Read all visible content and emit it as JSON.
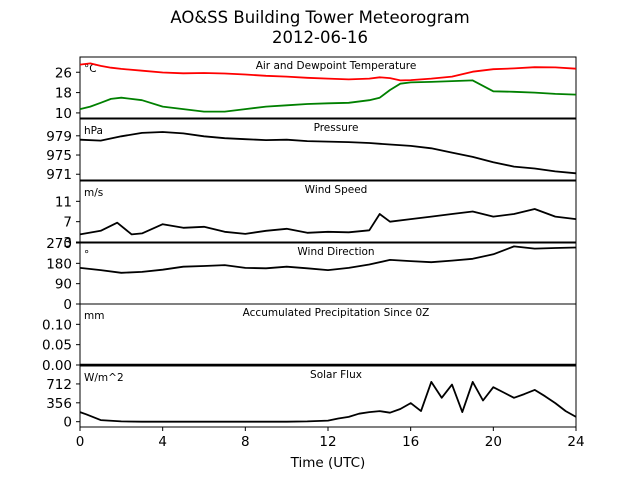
{
  "title": "AO&SS Building Tower Meteorogram",
  "subtitle": "2012-06-16",
  "xlabel": "Time (UTC)",
  "x_ticks": [
    "0",
    "4",
    "8",
    "12",
    "16",
    "20",
    "24"
  ],
  "colors": {
    "temperature": "#ff0000",
    "dewpoint": "#008000",
    "default": "#000000"
  },
  "chart_data": [
    {
      "type": "line",
      "name": "temp",
      "title": "Air and Dewpoint Temperature",
      "unit": "°C",
      "xlim": [
        0,
        24
      ],
      "ylim": [
        8,
        32
      ],
      "yticks": [
        26,
        18,
        10
      ],
      "x": [
        0,
        0.5,
        1,
        1.5,
        2,
        3,
        4,
        5,
        6,
        7,
        8,
        9,
        10,
        11,
        12,
        13,
        14,
        14.5,
        15,
        15.5,
        16,
        17,
        18,
        19,
        20,
        21,
        22,
        23,
        24
      ],
      "series": [
        {
          "color": "temperature",
          "values": [
            29,
            29.5,
            28.5,
            27.8,
            27.3,
            26.6,
            25.9,
            25.6,
            25.7,
            25.5,
            25.1,
            24.6,
            24.3,
            23.8,
            23.5,
            23.2,
            23.5,
            24.0,
            23.7,
            22.8,
            22.9,
            23.5,
            24.3,
            26.2,
            27.2,
            27.5,
            28.0,
            27.9,
            27.4
          ]
        },
        {
          "color": "dewpoint",
          "values": [
            11.5,
            12.5,
            14,
            15.5,
            16,
            15,
            12.5,
            11.5,
            10.5,
            10.5,
            11.5,
            12.5,
            13,
            13.5,
            13.8,
            14,
            15,
            16,
            19,
            21.5,
            22,
            22.2,
            22.5,
            22.8,
            18.5,
            18.3,
            18,
            17.5,
            17.2
          ]
        }
      ]
    },
    {
      "type": "line",
      "name": "pressure",
      "title": "Pressure",
      "unit": "hPa",
      "xlim": [
        0,
        24
      ],
      "ylim": [
        969.8,
        982.5
      ],
      "yticks": [
        979,
        975,
        971
      ],
      "x": [
        0,
        1,
        2,
        3,
        4,
        5,
        6,
        7,
        8,
        9,
        10,
        11,
        12,
        13,
        14,
        15,
        16,
        17,
        18,
        19,
        20,
        21,
        22,
        23,
        24
      ],
      "series": [
        {
          "color": "default",
          "values": [
            978.2,
            978.0,
            978.9,
            979.6,
            979.8,
            979.5,
            978.9,
            978.5,
            978.3,
            978.1,
            978.2,
            977.9,
            977.8,
            977.7,
            977.5,
            977.2,
            976.9,
            976.4,
            975.5,
            974.6,
            973.5,
            972.6,
            972.2,
            971.6,
            971.2
          ]
        }
      ]
    },
    {
      "type": "line",
      "name": "wind-speed",
      "title": "Wind Speed",
      "unit": "m/s",
      "xlim": [
        0,
        24
      ],
      "ylim": [
        3,
        15
      ],
      "yticks": [
        11,
        7,
        3
      ],
      "x": [
        0,
        1,
        1.8,
        2.5,
        3,
        4,
        5,
        6,
        7,
        8,
        9,
        10,
        11,
        12,
        13,
        14,
        14.5,
        15,
        16,
        17,
        18,
        19,
        20,
        21,
        22,
        23,
        24
      ],
      "series": [
        {
          "color": "default",
          "values": [
            4.5,
            5.2,
            6.8,
            4.5,
            4.7,
            6.5,
            5.8,
            6.0,
            5.0,
            4.6,
            5.2,
            5.6,
            4.8,
            5.0,
            4.9,
            5.3,
            8.5,
            7.0,
            7.5,
            8.0,
            8.5,
            9.0,
            8.0,
            8.5,
            9.5,
            8.0,
            7.5
          ]
        }
      ]
    },
    {
      "type": "line",
      "name": "wind-direction",
      "title": "Wind Direction",
      "unit": "°",
      "xlim": [
        0,
        24
      ],
      "ylim": [
        0,
        270
      ],
      "yticks": [
        270,
        180,
        90,
        0
      ],
      "x": [
        0,
        1,
        2,
        3,
        4,
        5,
        6,
        7,
        8,
        9,
        10,
        11,
        12,
        13,
        14,
        15,
        16,
        17,
        18,
        19,
        20,
        21,
        22,
        23,
        24
      ],
      "series": [
        {
          "color": "default",
          "values": [
            160,
            150,
            138,
            142,
            152,
            165,
            168,
            172,
            160,
            158,
            165,
            158,
            150,
            160,
            175,
            195,
            190,
            185,
            192,
            200,
            220,
            255,
            245,
            248,
            250
          ]
        }
      ]
    },
    {
      "type": "line",
      "name": "precip",
      "title": "Accumulated Precipitation Since 0Z",
      "unit": "mm",
      "xlim": [
        0,
        24
      ],
      "ylim": [
        0,
        0.15
      ],
      "yticks": [
        "0.10",
        "0.05",
        "0.00"
      ],
      "x": [
        0,
        24
      ],
      "series": [
        {
          "color": "default",
          "values": [
            0,
            0
          ]
        }
      ]
    },
    {
      "type": "line",
      "name": "solar",
      "title": "Solar Flux",
      "unit": "W/m^2",
      "xlim": [
        0,
        24
      ],
      "ylim": [
        -100,
        1050
      ],
      "yticks": [
        712,
        356,
        0
      ],
      "x": [
        0,
        0.3,
        1,
        2,
        3,
        4,
        5,
        6,
        7,
        8,
        9,
        10,
        11,
        12,
        12.5,
        13,
        13.5,
        14,
        14.5,
        15,
        15.5,
        16,
        16.5,
        17,
        17.5,
        18,
        18.5,
        19,
        19.5,
        20,
        20.5,
        21,
        21.5,
        22,
        22.5,
        23,
        23.5,
        24
      ],
      "series": [
        {
          "color": "default",
          "values": [
            180,
            140,
            30,
            5,
            0,
            0,
            0,
            0,
            0,
            0,
            0,
            0,
            5,
            20,
            60,
            90,
            150,
            180,
            200,
            170,
            240,
            350,
            200,
            750,
            450,
            700,
            180,
            750,
            400,
            650,
            550,
            450,
            520,
            600,
            480,
            350,
            200,
            90
          ]
        }
      ]
    }
  ]
}
